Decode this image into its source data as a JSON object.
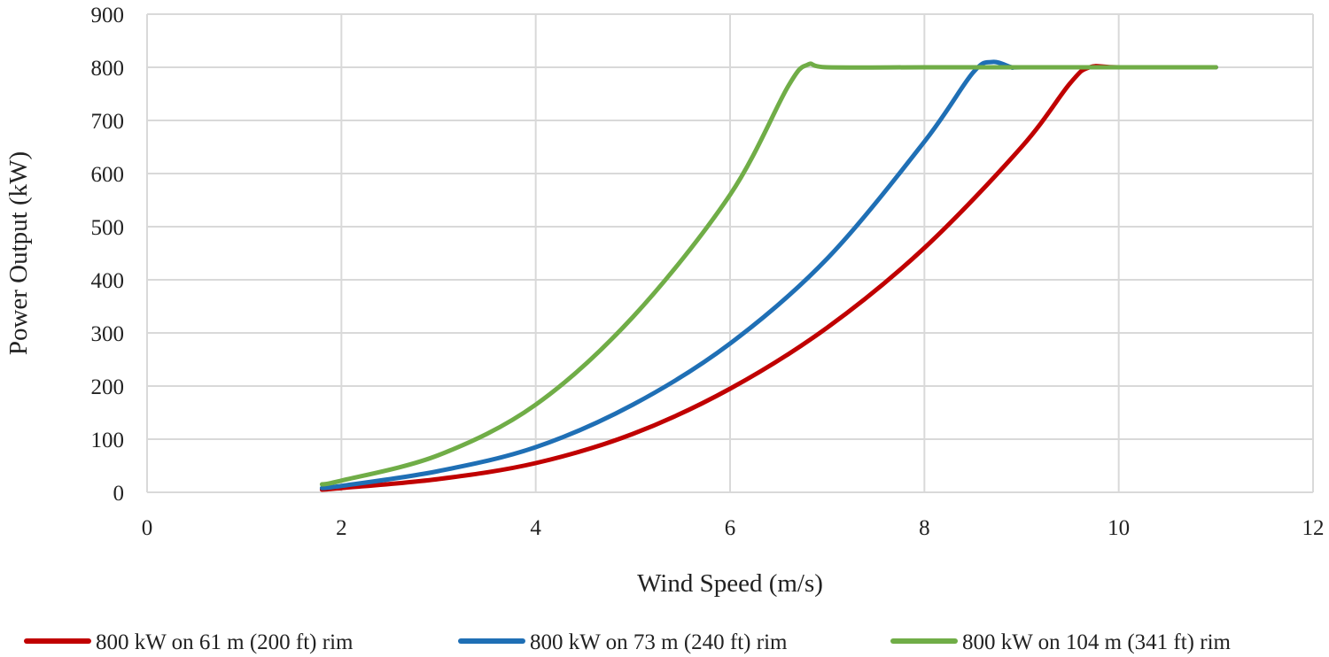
{
  "chart_data": {
    "type": "line",
    "title": "",
    "xlabel": "Wind Speed (m/s)",
    "ylabel": "Power Output (kW)",
    "xlim": [
      0,
      12
    ],
    "ylim": [
      0,
      900
    ],
    "xticks": [
      0,
      2,
      4,
      6,
      8,
      10,
      12
    ],
    "yticks": [
      0,
      100,
      200,
      300,
      400,
      500,
      600,
      700,
      800,
      900
    ],
    "grid": true,
    "legend_position": "bottom",
    "series": [
      {
        "name": "800 kW on 61 m (200 ft) rim",
        "color": "#c00000",
        "x": [
          1.8,
          2,
          3,
          4,
          5,
          6,
          7,
          8,
          9,
          9.5,
          9.7,
          10,
          11
        ],
        "y": [
          5,
          8,
          25,
          55,
          110,
          195,
          310,
          460,
          650,
          770,
          800,
          800,
          800
        ]
      },
      {
        "name": "800 kW on 73 m (240 ft) rim",
        "color": "#1f6fb5",
        "x": [
          1.8,
          2,
          3,
          4,
          5,
          6,
          7,
          8,
          8.5,
          8.7,
          8.9,
          9,
          10,
          11
        ],
        "y": [
          8,
          12,
          40,
          85,
          165,
          280,
          440,
          660,
          790,
          810,
          800,
          800,
          800,
          800
        ]
      },
      {
        "name": "800 kW on  104 m (341 ft) rim",
        "color": "#70ad47",
        "x": [
          1.8,
          2,
          3,
          4,
          5,
          6,
          6.6,
          6.8,
          7,
          8,
          9,
          10,
          11
        ],
        "y": [
          15,
          22,
          70,
          165,
          330,
          560,
          765,
          805,
          800,
          800,
          800,
          800,
          800
        ]
      }
    ]
  }
}
